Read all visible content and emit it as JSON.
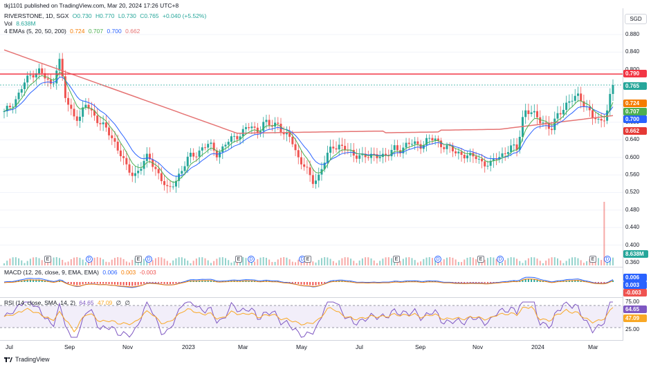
{
  "published": "tkj1101 published on TradingView.com, Mar 20, 2024 17:26 UTC+8",
  "symbol": {
    "name": "RIVERSTONE, 1D, SGX",
    "o": "O0.730",
    "h": "H0.770",
    "l": "L0.730",
    "c": "C0.765",
    "chg": "+0.040 (+5.52%)"
  },
  "vol": {
    "label": "Vol",
    "value": "8.638M"
  },
  "emas": {
    "label": "4 EMAs (5, 20, 50, 200)",
    "v1": "0.724",
    "v2": "0.707",
    "v3": "0.700",
    "v4": "0.662"
  },
  "macd": {
    "label": "MACD (12, 26, close, 9, EMA, EMA)",
    "v1": "0.006",
    "v2": "0.003",
    "v3": "-0.003"
  },
  "rsi": {
    "label": "RSI (14, close, SMA, 14, 2)",
    "v1": "64.65",
    "v2": "47.09",
    "v3": "∅",
    "v4": "∅"
  },
  "currency": "SGD",
  "price_ticks": [
    "0.880",
    "0.840",
    "0.800",
    "0.760",
    "0.720",
    "0.680",
    "0.640",
    "0.600",
    "0.560",
    "0.520",
    "0.480",
    "0.440",
    "0.400",
    "0.360"
  ],
  "badges": {
    "resistance": "0.790",
    "last": "0.765",
    "ema5": "0.724",
    "ema20": "0.707",
    "ema50": "0.700",
    "ema200": "0.662",
    "vol": "8.638M",
    "macd1": "0.006",
    "macd2": "0.003",
    "macd3": "-0.003",
    "rsi_top": "75.00",
    "rsi_val": "64.65",
    "rsi_sma": "47.09",
    "rsi_bot": "25.00"
  },
  "x_ticks": [
    "Jul",
    "Sep",
    "Nov",
    "2023",
    "Mar",
    "May",
    "Jul",
    "Sep",
    "Nov",
    "2024",
    "Mar"
  ],
  "events": [
    "E",
    "D",
    "E",
    "D",
    "E",
    "D",
    "D",
    "E",
    "E",
    "D",
    "E",
    "D",
    "E",
    "D"
  ],
  "footer": "TradingView",
  "colors": {
    "up": "#26a69a",
    "down": "#ef5350",
    "ema5": "#f57c00",
    "ema20": "#4caf50",
    "ema50": "#2962ff",
    "ema200": "#e57373",
    "resistance": "#f23645",
    "rsi": "#7e57c2"
  },
  "chart_data": {
    "type": "candlestick",
    "resistance_level": 0.79,
    "last_close": 0.765,
    "close_series": [
      0.7,
      0.72,
      0.74,
      0.77,
      0.79,
      0.8,
      0.78,
      0.76,
      0.83,
      0.73,
      0.7,
      0.69,
      0.72,
      0.7,
      0.68,
      0.66,
      0.64,
      0.61,
      0.57,
      0.56,
      0.58,
      0.6,
      0.58,
      0.55,
      0.52,
      0.55,
      0.57,
      0.6,
      0.61,
      0.62,
      0.63,
      0.61,
      0.62,
      0.64,
      0.65,
      0.66,
      0.67,
      0.66,
      0.68,
      0.67,
      0.68,
      0.65,
      0.64,
      0.6,
      0.58,
      0.54,
      0.56,
      0.6,
      0.62,
      0.63,
      0.62,
      0.6,
      0.61,
      0.6,
      0.6,
      0.61,
      0.6,
      0.62,
      0.62,
      0.63,
      0.63,
      0.63,
      0.64,
      0.64,
      0.63,
      0.62,
      0.61,
      0.61,
      0.6,
      0.6,
      0.59,
      0.58,
      0.6,
      0.61,
      0.62,
      0.62,
      0.71,
      0.7,
      0.69,
      0.68,
      0.66,
      0.7,
      0.72,
      0.73,
      0.74,
      0.72,
      0.69,
      0.68,
      0.7,
      0.765
    ]
  }
}
